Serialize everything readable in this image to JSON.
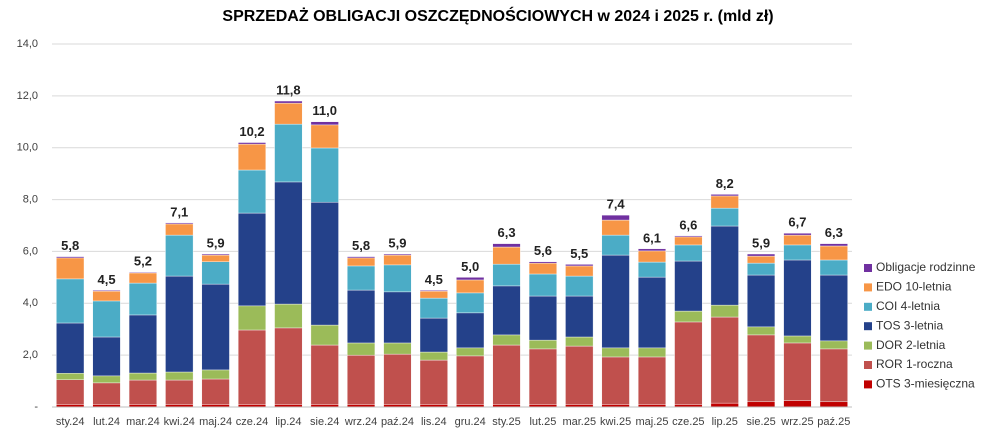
{
  "chart_data": {
    "type": "stacked_bar",
    "title": "SPRZEDAŻ OBLIGACJI OSZCZĘDNOŚCIOWYCH w 2024 i 2025 r. (mld zł)",
    "categories": [
      "sty.24",
      "lut.24",
      "mar.24",
      "kwi.24",
      "maj.24",
      "cze.24",
      "lip.24",
      "sie.24",
      "wrz.24",
      "paź.24",
      "lis.24",
      "gru.24",
      "sty.25",
      "lut.25",
      "mar.25",
      "kwi.25",
      "maj.25",
      "cze.25",
      "lip.25",
      "sie.25",
      "wrz.25",
      "paź.25"
    ],
    "series": [
      {
        "name": "OTS 3-miesięczna",
        "color": "#c00000",
        "values": [
          0.1,
          0.1,
          0.1,
          0.1,
          0.1,
          0.1,
          0.1,
          0.1,
          0.1,
          0.1,
          0.1,
          0.1,
          0.1,
          0.1,
          0.1,
          0.1,
          0.1,
          0.1,
          0.15,
          0.2,
          0.25,
          0.2
        ]
      },
      {
        "name": "ROR 1-roczna",
        "color": "#c0504d",
        "values": [
          0.95,
          0.83,
          0.94,
          0.94,
          0.98,
          2.87,
          2.95,
          2.29,
          1.9,
          1.94,
          1.71,
          1.87,
          2.29,
          2.14,
          2.25,
          1.83,
          1.83,
          3.18,
          3.32,
          2.58,
          2.22,
          2.04
        ]
      },
      {
        "name": "DOR 2-letnia",
        "color": "#9bbb59",
        "values": [
          0.25,
          0.27,
          0.27,
          0.31,
          0.35,
          0.93,
          0.92,
          0.77,
          0.47,
          0.43,
          0.31,
          0.31,
          0.39,
          0.34,
          0.35,
          0.35,
          0.35,
          0.42,
          0.46,
          0.31,
          0.27,
          0.31
        ]
      },
      {
        "name": "TOS 3-letnia",
        "color": "#24418a",
        "values": [
          1.94,
          1.5,
          2.24,
          3.7,
          3.31,
          3.58,
          4.71,
          4.74,
          2.04,
          1.97,
          1.31,
          1.35,
          1.89,
          1.7,
          1.58,
          3.58,
          2.73,
          1.93,
          3.05,
          2.0,
          2.93,
          2.54
        ]
      },
      {
        "name": "COI 4-letnia",
        "color": "#4bacc6",
        "values": [
          1.7,
          1.39,
          1.23,
          1.58,
          0.86,
          1.66,
          2.23,
          2.09,
          0.93,
          1.04,
          0.77,
          0.77,
          0.84,
          0.85,
          0.77,
          0.77,
          0.58,
          0.62,
          0.69,
          0.46,
          0.58,
          0.58
        ]
      },
      {
        "name": "EDO 10-letnia",
        "color": "#f79646",
        "values": [
          0.81,
          0.38,
          0.39,
          0.43,
          0.26,
          1.0,
          0.81,
          0.89,
          0.31,
          0.38,
          0.27,
          0.5,
          0.66,
          0.42,
          0.39,
          0.58,
          0.43,
          0.31,
          0.47,
          0.27,
          0.38,
          0.54
        ]
      },
      {
        "name": "Obligacje rodzinne",
        "color": "#7030a0",
        "values": [
          0.05,
          0.03,
          0.03,
          0.04,
          0.04,
          0.06,
          0.08,
          0.12,
          0.05,
          0.04,
          0.03,
          0.1,
          0.13,
          0.05,
          0.06,
          0.19,
          0.08,
          0.04,
          0.06,
          0.08,
          0.07,
          0.09
        ]
      }
    ],
    "totals": [
      5.8,
      4.5,
      5.2,
      7.1,
      5.9,
      10.2,
      11.8,
      11.0,
      5.8,
      5.9,
      4.5,
      5.0,
      6.3,
      5.6,
      5.5,
      7.4,
      6.1,
      6.6,
      8.2,
      5.9,
      6.7,
      6.3
    ],
    "total_labels": [
      "5,8",
      "4,5",
      "5,2",
      "7,1",
      "5,9",
      "10,2",
      "11,8",
      "11,0",
      "5,8",
      "5,9",
      "4,5",
      "5,0",
      "6,3",
      "5,6",
      "5,5",
      "7,4",
      "6,1",
      "6,6",
      "8,2",
      "5,9",
      "6,7",
      "6,3"
    ],
    "ylim": [
      0,
      14
    ],
    "yticks": [
      {
        "value": 0,
        "label": "-"
      },
      {
        "value": 2,
        "label": "2,0"
      },
      {
        "value": 4,
        "label": "4,0"
      },
      {
        "value": 6,
        "label": "6,0"
      },
      {
        "value": 8,
        "label": "8,0"
      },
      {
        "value": 10,
        "label": "10,0"
      },
      {
        "value": 12,
        "label": "12,0"
      },
      {
        "value": 14,
        "label": "14,0"
      }
    ],
    "grid": true,
    "legend": "right"
  }
}
